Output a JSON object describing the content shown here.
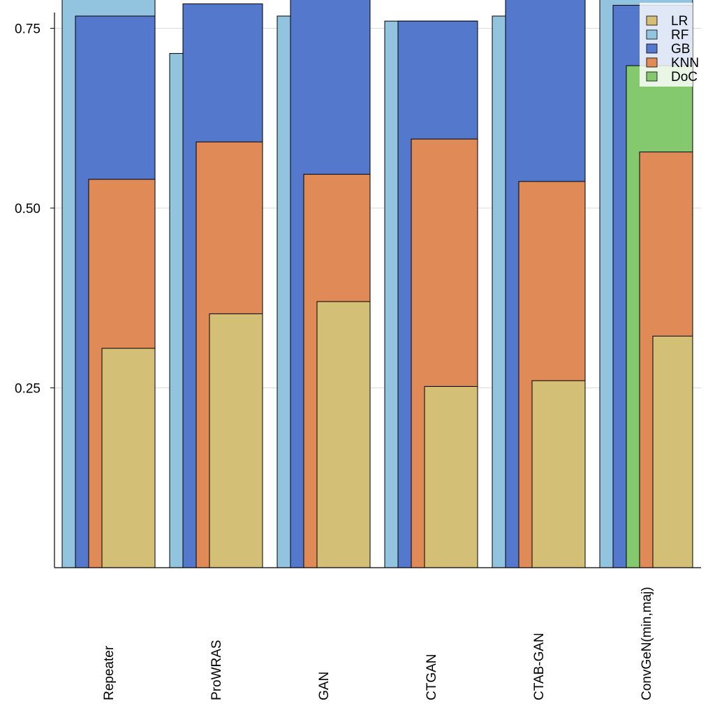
{
  "chart_data": {
    "type": "bar",
    "title": "",
    "xlabel": "",
    "ylabel": "",
    "ylim": [
      0.0,
      0.77
    ],
    "yticks": [
      0.25,
      0.5,
      0.75
    ],
    "ytick_labels": [
      "0.25",
      "0.50",
      "0.75"
    ],
    "grid": true,
    "legend_position": "top-right",
    "categories": [
      "Repeater",
      "ProWRAS",
      "GAN",
      "CTGAN",
      "CTAB-GAN",
      "ConvGeN(min,maj)"
    ],
    "series": [
      {
        "name": "LR",
        "color": "#d4bf76",
        "values": [
          0.305,
          0.353,
          0.37,
          0.252,
          0.26,
          0.322
        ]
      },
      {
        "name": "RF",
        "color": "#92c4e0",
        "values": [
          0.8,
          0.715,
          0.767,
          0.76,
          0.767,
          0.8
        ]
      },
      {
        "name": "GB",
        "color": "#5479cc",
        "values": [
          0.767,
          0.784,
          0.8,
          0.76,
          0.8,
          0.782
        ]
      },
      {
        "name": "KNN",
        "color": "#e08a58",
        "values": [
          0.54,
          0.592,
          0.547,
          0.596,
          0.537,
          0.578
        ]
      },
      {
        "name": "DoC",
        "color": "#85c96e",
        "values": [
          null,
          null,
          null,
          null,
          null,
          0.698
        ]
      }
    ]
  }
}
